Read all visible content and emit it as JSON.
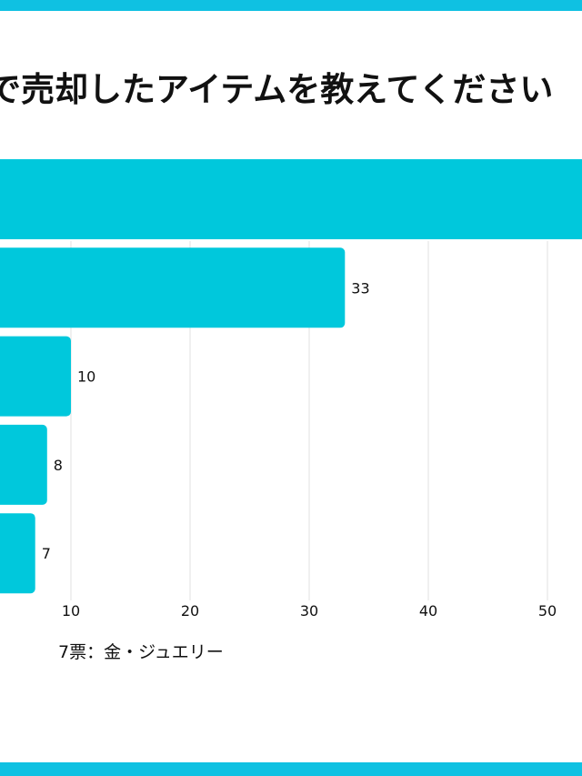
{
  "colors": {
    "stripe": "#0fc1e2",
    "bar": "#00c8dc",
    "grid": "#e2e2e2",
    "text": "#111111"
  },
  "title": "で売却したアイテムを教えてください",
  "note": "7票：金・ジュエリー",
  "chart_data": {
    "type": "bar",
    "orientation": "horizontal",
    "title": "で売却したアイテムを教えてください",
    "values": [
      55,
      33,
      10,
      8,
      7
    ],
    "value_labels": [
      "",
      "33",
      "10",
      "8",
      "7"
    ],
    "xticks": [
      10,
      20,
      30,
      40,
      50
    ],
    "xlim": [
      0,
      52.9
    ],
    "grid": true
  }
}
